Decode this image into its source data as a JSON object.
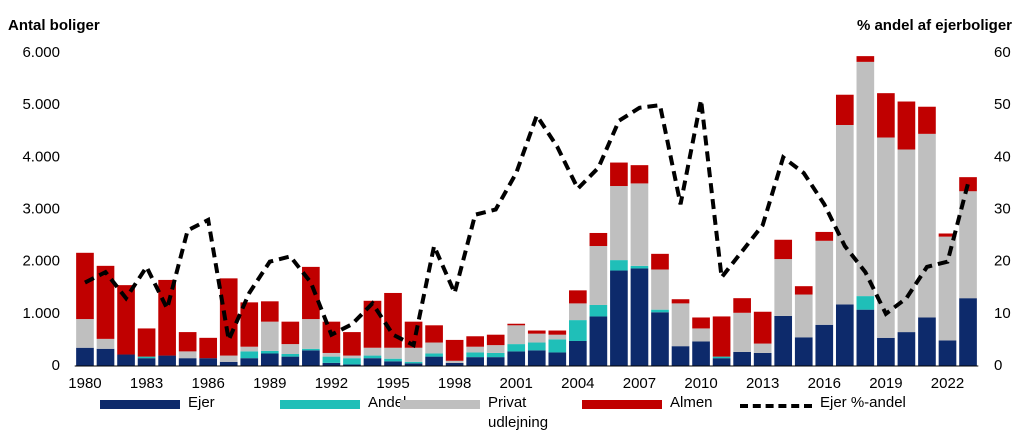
{
  "chart_data": {
    "type": "bar",
    "stacked": true,
    "ylabel": "Antal boliger",
    "y2label": "% andel af ejerboliger",
    "categories": [
      "1980",
      null,
      null,
      "1983",
      null,
      null,
      "1986",
      null,
      null,
      "1989",
      null,
      null,
      "1992",
      null,
      null,
      "1995",
      null,
      null,
      "1998",
      null,
      null,
      "2001",
      null,
      null,
      "2004",
      null,
      null,
      "2007",
      null,
      null,
      "2010",
      null,
      null,
      "2013",
      null,
      null,
      "2016",
      null,
      null,
      "2019",
      null,
      null,
      "2022",
      null
    ],
    "series": [
      {
        "name": "Ejer",
        "color": "#0d2a6b",
        "values": [
          350,
          330,
          220,
          150,
          200,
          150,
          150,
          80,
          150,
          240,
          180,
          300,
          60,
          30,
          150,
          90,
          50,
          180,
          60,
          170,
          170,
          280,
          300,
          260,
          480,
          950,
          1830,
          1870,
          1030,
          380,
          470,
          150,
          270,
          250,
          960,
          550,
          790,
          1180,
          1080,
          540,
          650,
          930,
          490,
          1300
        ]
      },
      {
        "name": "Andel",
        "color": "#1fbfb8",
        "values": [
          0,
          0,
          0,
          30,
          0,
          0,
          0,
          0,
          130,
          50,
          50,
          30,
          120,
          120,
          50,
          50,
          30,
          60,
          0,
          90,
          80,
          140,
          150,
          250,
          400,
          220,
          200,
          50,
          50,
          0,
          0,
          30,
          0,
          0,
          0,
          0,
          0,
          0,
          260,
          0,
          0,
          0,
          0,
          0
        ]
      },
      {
        "name": "Privat udlejning",
        "color": "#bfbfbf",
        "values": [
          550,
          190,
          0,
          0,
          0,
          130,
          0,
          120,
          90,
          560,
          190,
          570,
          70,
          50,
          150,
          210,
          270,
          210,
          40,
          110,
          150,
          360,
          170,
          90,
          320,
          1130,
          1420,
          1580,
          770,
          820,
          250,
          0,
          750,
          180,
          1090,
          820,
          1610,
          3440,
          4490,
          3840,
          3500,
          3520,
          1990,
          2050
        ]
      },
      {
        "name": "Almen",
        "color": "#c00000",
        "values": [
          1270,
          1400,
          1330,
          540,
          1450,
          370,
          390,
          1480,
          850,
          390,
          430,
          1000,
          600,
          450,
          900,
          1050,
          500,
          330,
          400,
          200,
          200,
          30,
          60,
          80,
          250,
          250,
          450,
          350,
          300,
          80,
          210,
          770,
          280,
          610,
          370,
          160,
          170,
          580,
          110,
          850,
          920,
          520,
          60,
          270
        ]
      },
      {
        "name": "Ejer %-andel",
        "type": "line",
        "axis": "y2",
        "color": "#000000",
        "dashed": true,
        "values": [
          16,
          18,
          13,
          19,
          11,
          26,
          28,
          5,
          14,
          20,
          21,
          16,
          6,
          8,
          12,
          6,
          4,
          23,
          14,
          29,
          30,
          37,
          48,
          42,
          34,
          38,
          47,
          49.5,
          50,
          31,
          51,
          17,
          22,
          27,
          40,
          37,
          31,
          23,
          18,
          10,
          13,
          19,
          20,
          35
        ]
      }
    ],
    "ylim": [
      0,
      6000
    ],
    "yticks": [
      0,
      {
        "value": 1000,
        "label": "1.000"
      },
      {
        "value": 2000,
        "label": "2.000"
      },
      {
        "value": 3000,
        "label": "3.000"
      },
      {
        "value": 4000,
        "label": "4.000"
      },
      {
        "value": 5000,
        "label": "5.000"
      },
      {
        "value": 6000,
        "label": "6.000"
      }
    ],
    "y2lim": [
      0,
      60
    ],
    "y2ticks": [
      0,
      10,
      20,
      30,
      40,
      50,
      60
    ],
    "grid": false
  }
}
